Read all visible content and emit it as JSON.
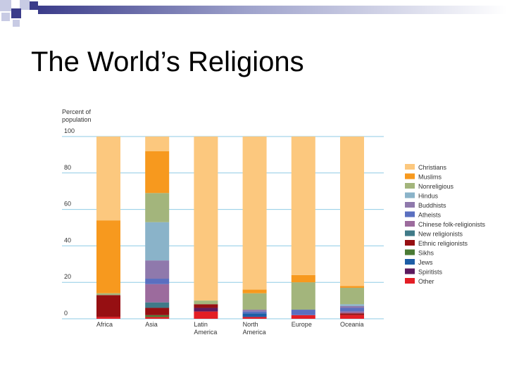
{
  "slide": {
    "title": "The World’s Religions"
  },
  "colors": {
    "deco_dark": "#3b3c8a",
    "deco_light": "#c8cbe4",
    "gridline": "#8fcbe6"
  },
  "chart_data": {
    "type": "bar",
    "stacked": true,
    "orientation": "vertical",
    "ylabel": "Percent of population",
    "xlabel": "",
    "ylim": [
      0,
      100
    ],
    "yticks": [
      0,
      20,
      40,
      60,
      80,
      100
    ],
    "grid": true,
    "legend_position": "right",
    "categories": [
      "Africa",
      "Asia",
      "Latin America",
      "North America",
      "Europe",
      "Oceania"
    ],
    "series": [
      {
        "name": "Christians",
        "color": "#fcc87e",
        "values": [
          46,
          8,
          90,
          84,
          76,
          82
        ]
      },
      {
        "name": "Muslims",
        "color": "#f7991e",
        "values": [
          40,
          23,
          0,
          2,
          4,
          1
        ]
      },
      {
        "name": "Nonreligious",
        "color": "#a3b57c",
        "values": [
          1,
          16,
          2,
          9,
          15,
          9
        ]
      },
      {
        "name": "Hindus",
        "color": "#8ab3c9",
        "values": [
          0,
          21,
          0,
          0,
          0,
          1
        ]
      },
      {
        "name": "Buddhists",
        "color": "#8f79ac",
        "values": [
          0,
          10,
          0,
          1,
          0,
          1
        ]
      },
      {
        "name": "Atheists",
        "color": "#5a6fc0",
        "values": [
          0,
          3,
          0,
          1,
          3,
          2
        ]
      },
      {
        "name": "Chinese folk-religionists",
        "color": "#9c6b9d",
        "values": [
          0,
          10,
          0,
          0,
          0,
          1
        ]
      },
      {
        "name": "New religionists",
        "color": "#3f7a88",
        "values": [
          0,
          3,
          0,
          0,
          0,
          0
        ]
      },
      {
        "name": "Ethnic religionists",
        "color": "#960f12",
        "values": [
          12,
          4,
          2,
          0,
          0,
          1
        ]
      },
      {
        "name": "Sikhs",
        "color": "#4a7a34",
        "values": [
          0,
          1,
          0,
          0,
          0,
          0
        ]
      },
      {
        "name": "Jews",
        "color": "#1d5ea6",
        "values": [
          0,
          0,
          0,
          2,
          0,
          0
        ]
      },
      {
        "name": "Spiritists",
        "color": "#5c1a5e",
        "values": [
          0,
          0,
          2,
          0,
          0,
          0
        ]
      },
      {
        "name": "Other",
        "color": "#e31e25",
        "values": [
          1,
          1,
          4,
          1,
          2,
          2
        ]
      }
    ]
  }
}
